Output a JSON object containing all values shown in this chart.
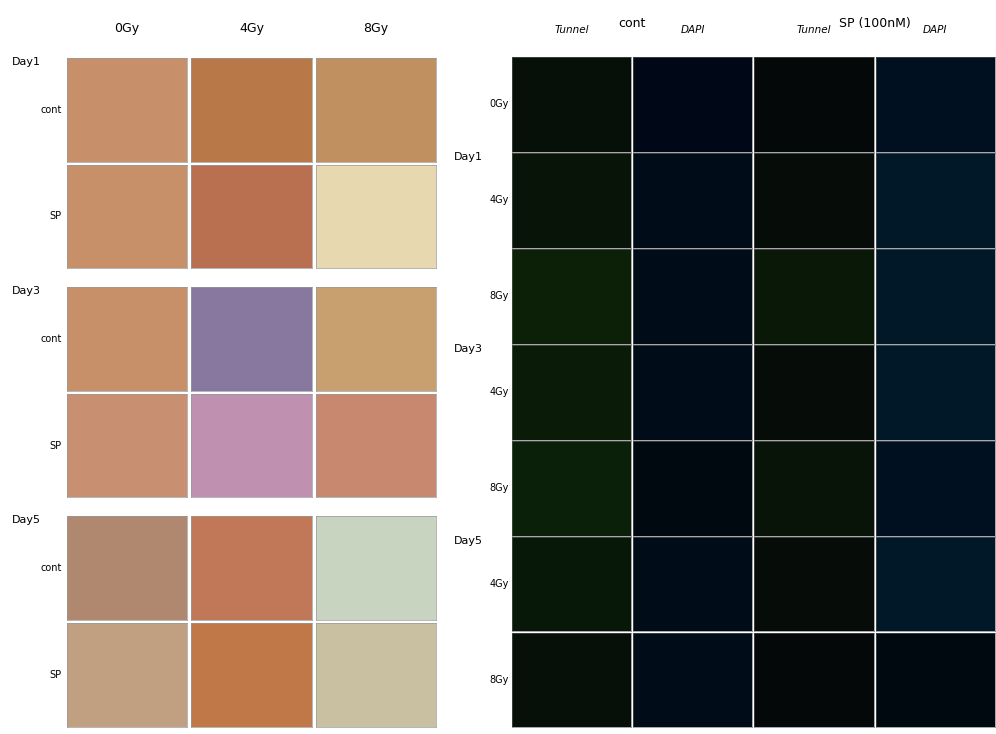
{
  "background_color": "#ffffff",
  "left_panel": {
    "col_labels": [
      "0Gy",
      "4Gy",
      "8Gy"
    ],
    "row_groups": [
      {
        "group_label": "Day1",
        "rows": [
          {
            "row_label": "cont",
            "colors": [
              "#c8906a",
              "#b87848",
              "#c09060"
            ]
          },
          {
            "row_label": "SP",
            "colors": [
              "#c89068",
              "#b87050",
              "#e8d8b0"
            ]
          }
        ]
      },
      {
        "group_label": "Day3",
        "rows": [
          {
            "row_label": "cont",
            "colors": [
              "#c89068",
              "#8878a0",
              "#c8a070"
            ]
          },
          {
            "row_label": "SP",
            "colors": [
              "#c89070",
              "#c090b0",
              "#c88870"
            ]
          }
        ]
      },
      {
        "group_label": "Day5",
        "rows": [
          {
            "row_label": "cont",
            "colors": [
              "#b08870",
              "#c07858",
              "#c8d4c0"
            ]
          },
          {
            "row_label": "SP",
            "colors": [
              "#c0a080",
              "#c07848",
              "#c8c0a0"
            ]
          }
        ]
      }
    ]
  },
  "right_panel": {
    "cont_label": "cont",
    "sp_label": "SP (100nM)",
    "sub_labels": [
      "Tunnel",
      "DAPI",
      "Tunnel",
      "DAPI"
    ],
    "rows": [
      {
        "group": "",
        "sublabel": "0Gy",
        "tc": "#061008",
        "dc": "#000818",
        "tsp": "#040808",
        "dsp": "#001020"
      },
      {
        "group": "Day1",
        "sublabel": "4Gy",
        "tc": "#081408",
        "dc": "#000c18",
        "tsp": "#060c08",
        "dsp": "#001828"
      },
      {
        "group": "",
        "sublabel": "8Gy",
        "tc": "#0c2008",
        "dc": "#000c18",
        "tsp": "#0a1808",
        "dsp": "#001828"
      },
      {
        "group": "Day3",
        "sublabel": "4Gy",
        "tc": "#0a1c08",
        "dc": "#000c18",
        "tsp": "#060c08",
        "dsp": "#001828"
      },
      {
        "group": "",
        "sublabel": "8Gy",
        "tc": "#0a2008",
        "dc": "#000810",
        "tsp": "#081408",
        "dsp": "#001020"
      },
      {
        "group": "Day5",
        "sublabel": "4Gy",
        "tc": "#081808",
        "dc": "#000c18",
        "tsp": "#060c08",
        "dsp": "#001828"
      },
      {
        "group": "",
        "sublabel": "8Gy",
        "tc": "#061008",
        "dc": "#000c18",
        "tsp": "#040808",
        "dsp": "#000810"
      }
    ]
  },
  "title_fontsize": 9,
  "label_fontsize": 8,
  "label_color": "#000000"
}
